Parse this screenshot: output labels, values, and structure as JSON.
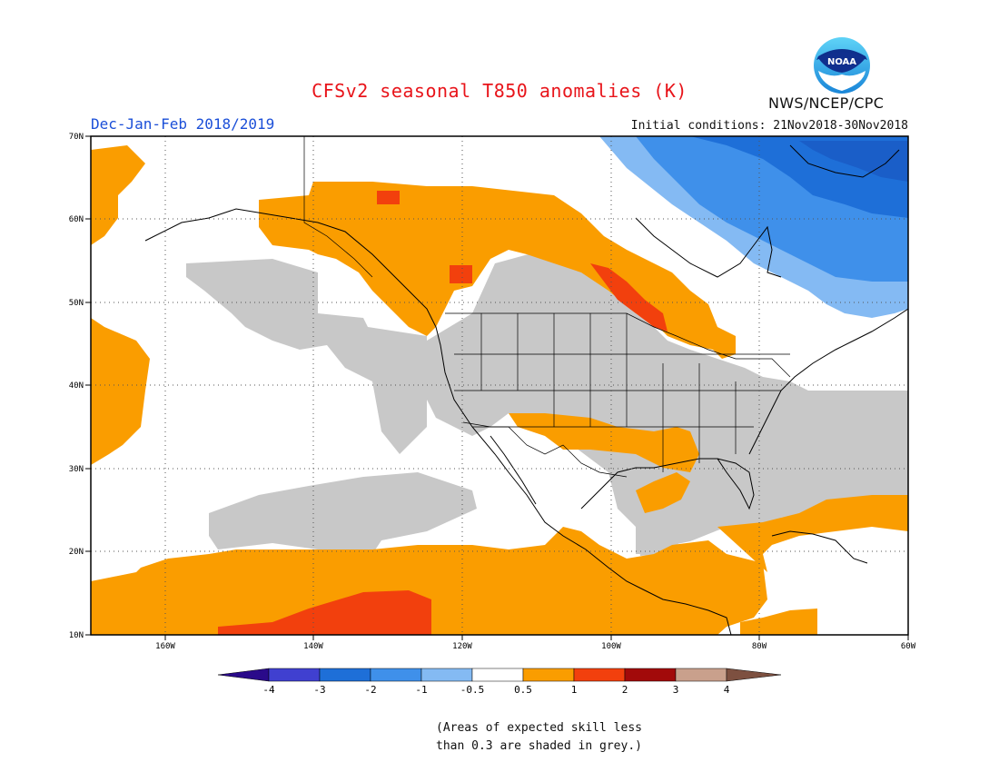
{
  "header": {
    "title": "CFSv2 seasonal T850 anomalies (K)",
    "season": "Dec-Jan-Feb 2018/2019",
    "initial_conditions": "Initial conditions: 21Nov2018-30Nov2018",
    "agency": "NWS/NCEP/CPC",
    "logo_text": "NOAA"
  },
  "map": {
    "lat_labels": [
      "70N",
      "60N",
      "50N",
      "40N",
      "30N",
      "20N",
      "10N"
    ],
    "lon_labels": [
      "160W",
      "140W",
      "120W",
      "100W",
      "80W",
      "60W"
    ],
    "lon_range": [
      -170,
      -60
    ],
    "lat_range": [
      10,
      70
    ],
    "grid": true
  },
  "colorbar": {
    "ticks": [
      "-4",
      "-3",
      "-2",
      "-1",
      "-0.5",
      "0.5",
      "1",
      "2",
      "3",
      "4"
    ],
    "colors": [
      "#2a0a8a",
      "#4040d0",
      "#1e6fd8",
      "#3f90ea",
      "#84baf3",
      "#ffffff",
      "#fa9d00",
      "#f2400d",
      "#a20a0a",
      "#c9a08c",
      "#7d5040"
    ]
  },
  "colors": {
    "grey_skill": "#c8c8c8",
    "orange": "#fa9d00",
    "red": "#f2400d",
    "blue_light": "#84baf3",
    "blue_mid": "#3f90ea",
    "blue_dark": "#1e6fd8",
    "blue_darker": "#1a5ec8",
    "title": "#e8141a",
    "season": "#1b4fd8"
  },
  "footnote": {
    "line1": "(Areas of expected skill less",
    "line2": "than 0.3 are shaded in grey.)"
  }
}
